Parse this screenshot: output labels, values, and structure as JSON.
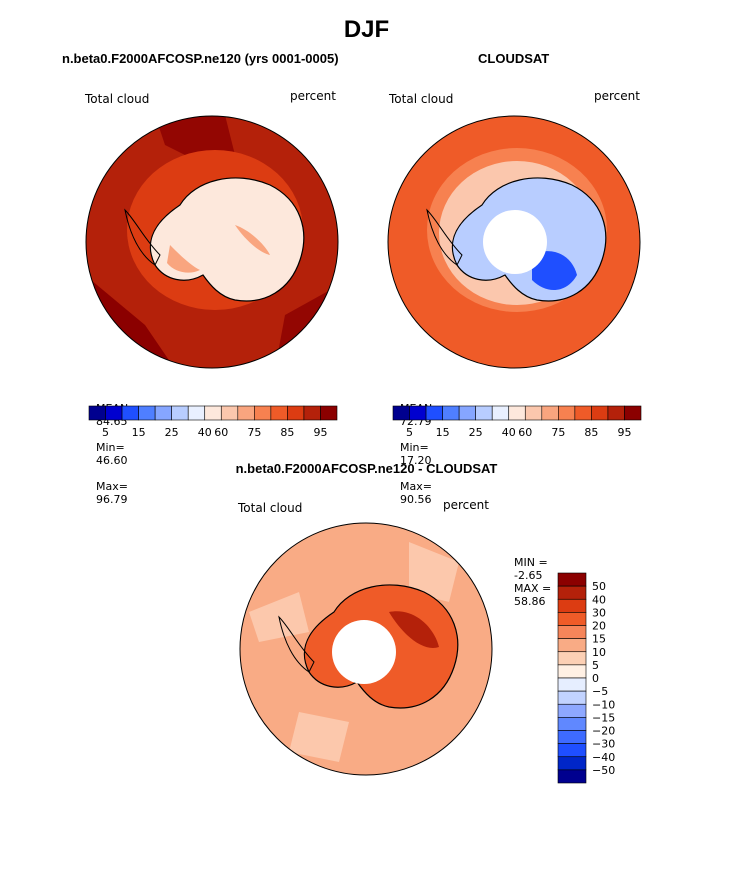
{
  "page": {
    "title": "DJF"
  },
  "palettes": {
    "abs": [
      "#00008f",
      "#0000cf",
      "#1f4fff",
      "#4f7fff",
      "#86a6ff",
      "#b8cdff",
      "#e9f0ff",
      "#fde8dc",
      "#fbc7ad",
      "#f9a57f",
      "#f78150",
      "#ef5b28",
      "#dc3c12",
      "#b4210a",
      "#8b0000"
    ],
    "diff": [
      "#00008f",
      "#0026c8",
      "#1f4fff",
      "#3e6bff",
      "#6088ff",
      "#8ea8ff",
      "#c2d3ff",
      "#e6eeff",
      "#fff0e4",
      "#fcd0b5",
      "#f9ab85",
      "#f6855a",
      "#ef5b28",
      "#dc3c12",
      "#b4210a",
      "#8b0000"
    ]
  },
  "panels": [
    {
      "heading": "n.beta0.F2000AFCOSP.ne120 (yrs 0001-0005)",
      "field_label": "Total cloud",
      "units": "percent",
      "stats": {
        "mean_label": "MEAN=",
        "mean": "84.65",
        "min_label": "Min=",
        "min": "46.60",
        "max_label": "Max=",
        "max": "96.79"
      },
      "colorbar_ticks": [
        "5",
        "15",
        "25",
        "40",
        "60",
        "75",
        "85",
        "95"
      ],
      "ocean_color": "#b4210a",
      "ring_color": "#dc3c12",
      "land_color": "#fde8dc",
      "land_accent": "#f9a57f",
      "pole_hole": false
    },
    {
      "heading": "CLOUDSAT",
      "field_label": "Total cloud",
      "units": "percent",
      "stats": {
        "mean_label": "MEAN=",
        "mean": "72.79",
        "min_label": "Min=",
        "min": "17.20",
        "max_label": "Max=",
        "max": "90.56"
      },
      "colorbar_ticks": [
        "5",
        "15",
        "25",
        "40",
        "60",
        "75",
        "85",
        "95"
      ],
      "ocean_color": "#ef5b28",
      "ring_color": "#f78150",
      "land_color": "#b8cdff",
      "land_accent": "#1f4fff",
      "pole_hole": true
    }
  ],
  "diff_panel": {
    "heading": "n.beta0.F2000AFCOSP.ne120 - CLOUDSAT",
    "field_label": "Total cloud",
    "units": "percent",
    "min_label": "MIN =",
    "min": "-2.65",
    "max_label": "MAX =",
    "max": "58.86",
    "ocean_color": "#f9ab85",
    "land_color": "#ef5b28",
    "land_accent": "#b4210a",
    "colorbar_labels": [
      "50",
      "40",
      "30",
      "20",
      "15",
      "10",
      "5",
      "0",
      "−5",
      "−10",
      "−15",
      "−20",
      "−30",
      "−40",
      "−50"
    ]
  }
}
